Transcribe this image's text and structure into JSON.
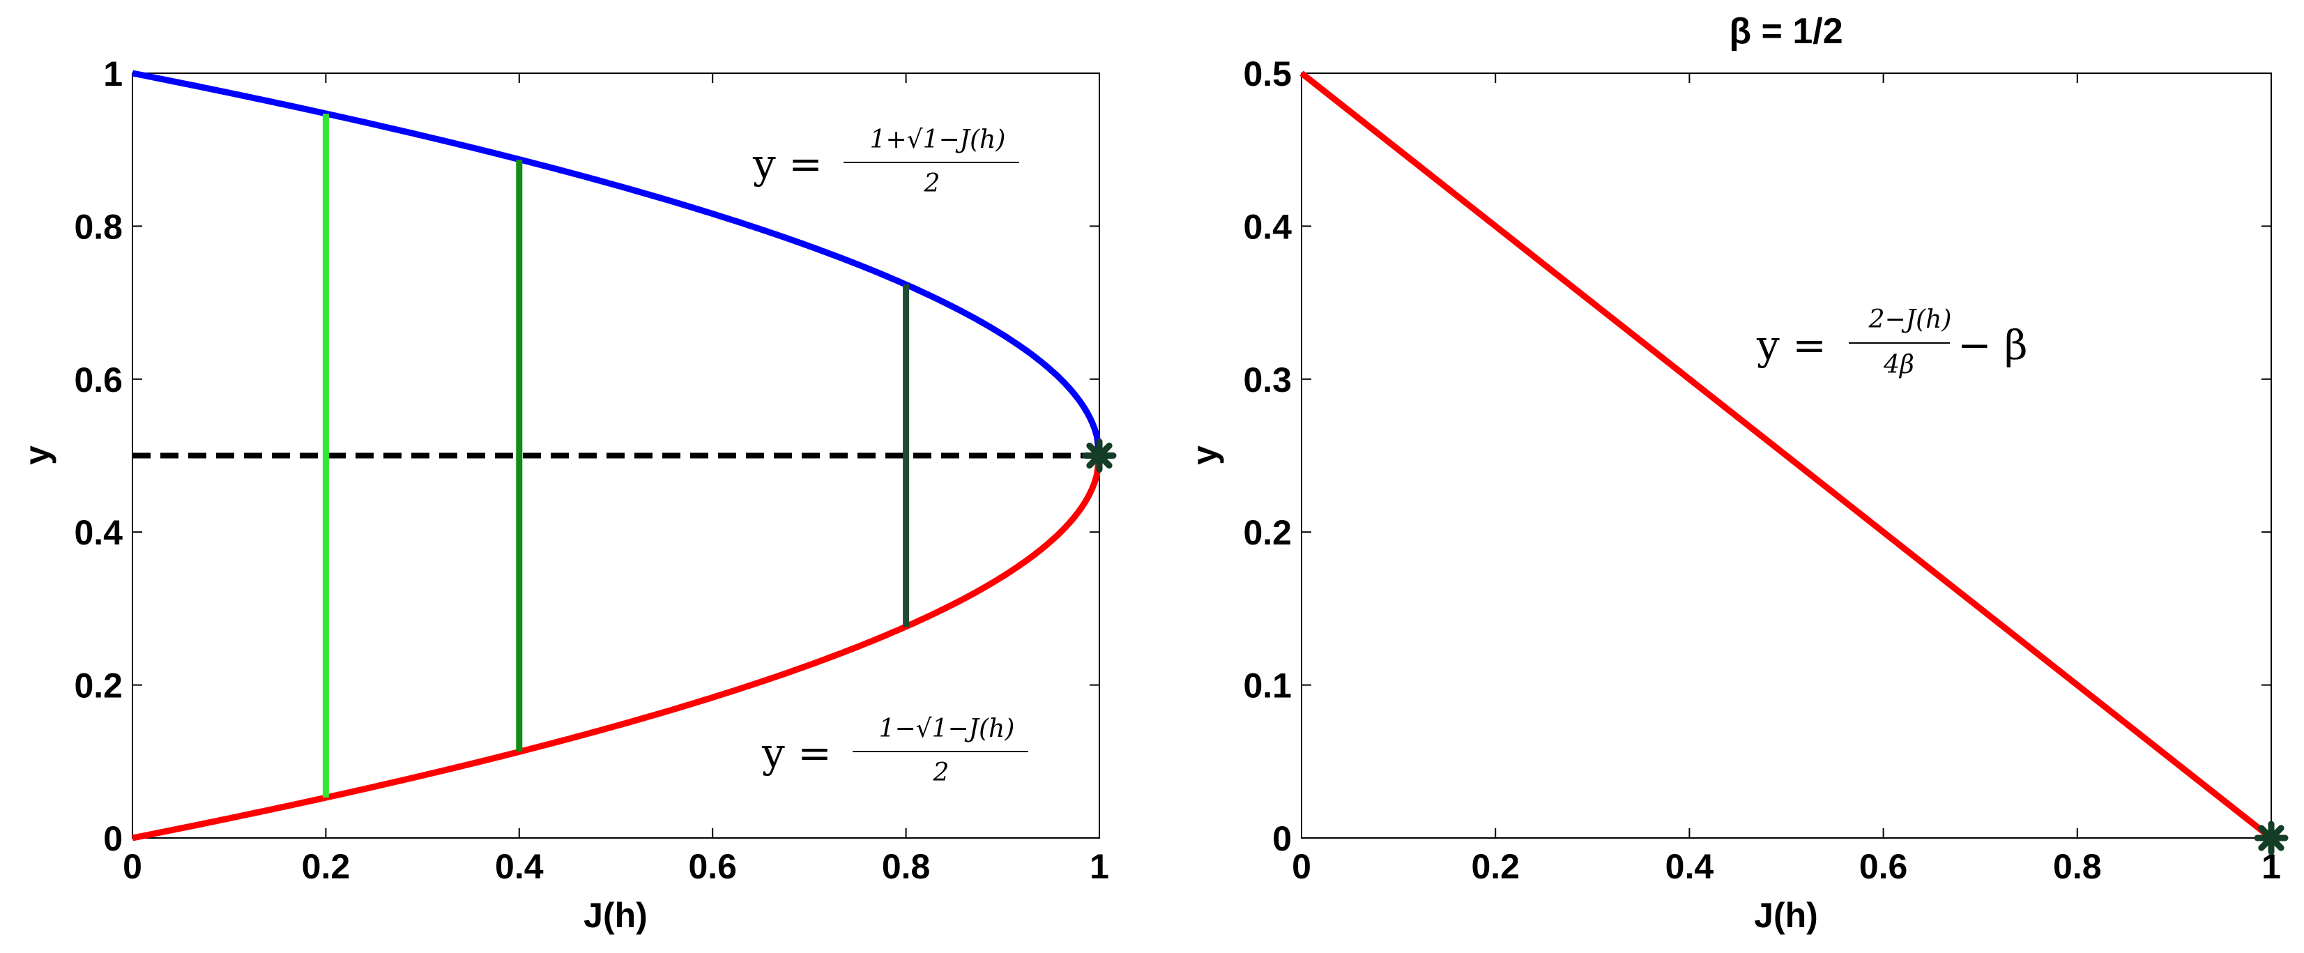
{
  "chart_data": [
    {
      "type": "line",
      "title": "",
      "xlabel": "J(h)",
      "ylabel": "y",
      "xlim": [
        0,
        1
      ],
      "ylim": [
        0,
        1
      ],
      "xticks": [
        "0",
        "0.2",
        "0.4",
        "0.6",
        "0.8",
        "1"
      ],
      "yticks": [
        "0",
        "0.2",
        "0.4",
        "0.6",
        "0.8",
        "1"
      ],
      "grid": false,
      "series": [
        {
          "color": "#0000ff",
          "function": "upper"
        },
        {
          "color": "#ff0000",
          "function": "lower"
        },
        {
          "color": "#000000",
          "style": "dashed",
          "x": [
            0,
            1
          ],
          "y": [
            0.5,
            0.5
          ]
        }
      ],
      "segments": [
        {
          "x": 0.2,
          "y0": 0.053,
          "y1": 0.947,
          "color": "#33e633"
        },
        {
          "x": 0.4,
          "y0": 0.113,
          "y1": 0.887,
          "color": "#148c14"
        },
        {
          "x": 0.8,
          "y0": 0.276,
          "y1": 0.724,
          "color": "#1f4d33"
        }
      ],
      "point": {
        "x": 1,
        "y": 0.5,
        "color": "#143d26",
        "marker": "asterisk"
      },
      "annotations": {
        "upper_prefix": "y =",
        "upper_numerator": "1+√1−J(h)",
        "upper_denominator": "2",
        "lower_prefix": "y =",
        "lower_numerator": "1−√1−J(h)",
        "lower_denominator": "2"
      }
    },
    {
      "type": "line",
      "title": "β = 1/2",
      "xlabel": "J(h)",
      "ylabel": "y",
      "xlim": [
        0,
        1
      ],
      "ylim": [
        0,
        0.5
      ],
      "xticks": [
        "0",
        "0.2",
        "0.4",
        "0.6",
        "0.8",
        "1"
      ],
      "yticks": [
        "0",
        "0.1",
        "0.2",
        "0.3",
        "0.4",
        "0.5"
      ],
      "grid": false,
      "series": [
        {
          "color": "#ff0000",
          "x": [
            0,
            1
          ],
          "y": [
            0.5,
            0
          ]
        }
      ],
      "point": {
        "x": 1,
        "y": 0,
        "color": "#143d26",
        "marker": "asterisk"
      },
      "annotations": {
        "prefix": "y =",
        "numerator": "2−J(h)",
        "denominator": "4β",
        "suffix": "− β"
      }
    }
  ]
}
